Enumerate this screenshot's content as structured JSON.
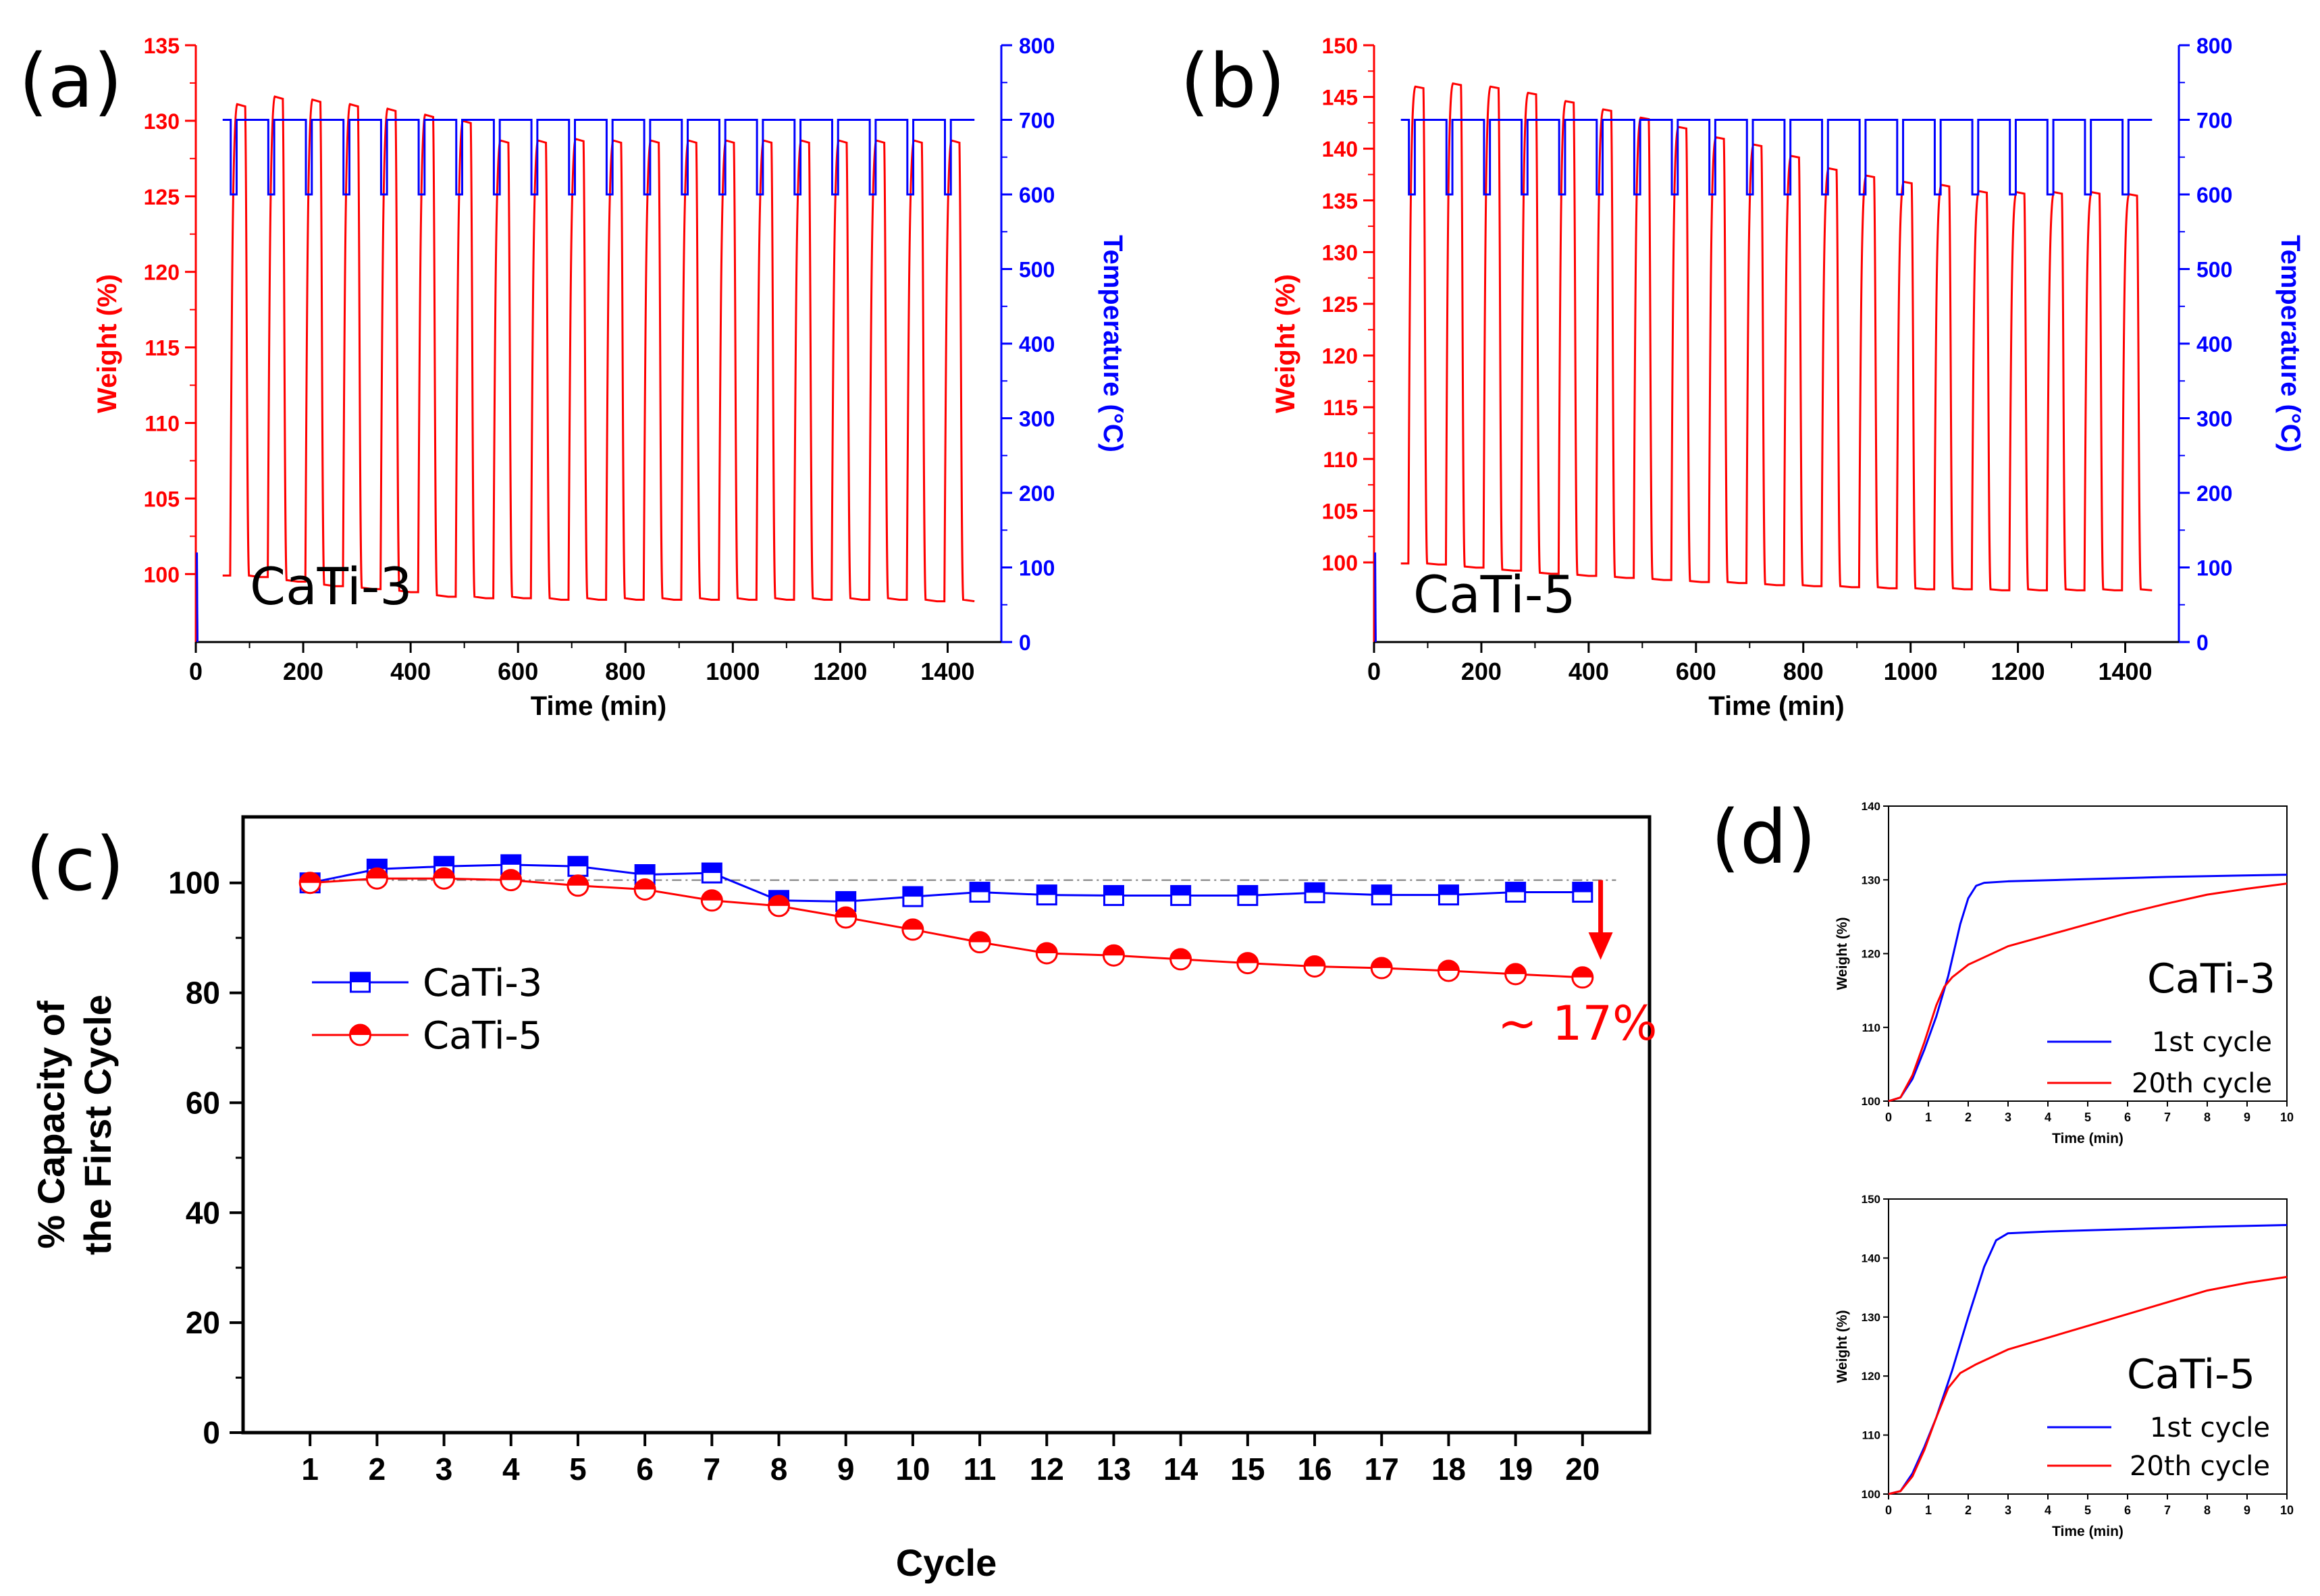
{
  "panels": {
    "a": {
      "label": "(a)",
      "sample": "CaTi-3"
    },
    "b": {
      "label": "(b)",
      "sample": "CaTi-5"
    },
    "c": {
      "label": "(c)",
      "annotation": "~ 17%"
    },
    "d": {
      "label": "(d)"
    }
  },
  "colors": {
    "weight": "#ff0000",
    "temperature": "#0000ff",
    "cati3": "#0000ff",
    "cati5": "#ff0000"
  },
  "chart_data": [
    {
      "id": "a",
      "type": "line",
      "title": "CaTi-3",
      "xlabel": "Time (min)",
      "ylabel": "Weight  (%)",
      "y2label": "Temperature (°C)",
      "xlim": [
        0,
        1500
      ],
      "ylim": [
        95.5,
        135
      ],
      "y2lim": [
        0,
        800
      ],
      "xticks": [
        "0",
        "200",
        "400",
        "600",
        "800",
        "1000",
        "1200",
        "1400"
      ],
      "yticks": [
        "100",
        "105",
        "110",
        "115",
        "120",
        "125",
        "130",
        "135"
      ],
      "y2ticks": [
        "0",
        "100",
        "200",
        "300",
        "400",
        "500",
        "600",
        "700",
        "800"
      ],
      "cycles": 20,
      "time_start": 50,
      "period": 70,
      "baseline_weights": [
        99.9,
        99.8,
        99.5,
        99.2,
        99.0,
        98.8,
        98.5,
        98.4,
        98.4,
        98.3,
        98.3,
        98.3,
        98.3,
        98.3,
        98.3,
        98.3,
        98.3,
        98.3,
        98.3,
        98.2
      ],
      "peak_weights": [
        131.1,
        131.6,
        131.4,
        131.1,
        130.8,
        130.4,
        130.0,
        128.7,
        128.7,
        128.8,
        128.7,
        128.7,
        128.7,
        128.7,
        128.7,
        128.7,
        128.7,
        128.7,
        128.7,
        128.7
      ],
      "temperature_high": 700,
      "temperature_low": 600
    },
    {
      "id": "b",
      "type": "line",
      "title": "CaTi-5",
      "xlabel": "Time (min)",
      "ylabel": "Weight  (%)",
      "y2label": "Temperature (°C)",
      "xlim": [
        0,
        1500
      ],
      "ylim": [
        92.3,
        150
      ],
      "y2lim": [
        0,
        800
      ],
      "xticks": [
        "0",
        "200",
        "400",
        "600",
        "800",
        "1000",
        "1200",
        "1400"
      ],
      "yticks": [
        "100",
        "105",
        "110",
        "115",
        "120",
        "125",
        "130",
        "135",
        "140",
        "145",
        "150"
      ],
      "y2ticks": [
        "0",
        "100",
        "200",
        "300",
        "400",
        "500",
        "600",
        "700",
        "800"
      ],
      "cycles": 20,
      "time_start": 50,
      "period": 70,
      "baseline_weights": [
        99.9,
        99.8,
        99.5,
        99.2,
        98.9,
        98.7,
        98.5,
        98.3,
        98.1,
        98.0,
        97.8,
        97.7,
        97.6,
        97.5,
        97.4,
        97.4,
        97.3,
        97.3,
        97.3,
        97.3
      ],
      "peak_weights": [
        146.0,
        146.3,
        146.0,
        145.4,
        144.6,
        143.8,
        143.0,
        142.1,
        141.1,
        140.4,
        139.3,
        138.1,
        137.4,
        136.8,
        136.5,
        135.9,
        135.8,
        135.8,
        135.8,
        135.6
      ],
      "temperature_high": 700,
      "temperature_low": 600
    },
    {
      "id": "c",
      "type": "line",
      "xlabel": "Cycle",
      "ylabel": "% Capacity of the First Cycle",
      "ylabel_lines": [
        "% Capacity of",
        "the First Cycle"
      ],
      "xlim": [
        0,
        21
      ],
      "ylim": [
        0,
        112
      ],
      "categories": [
        "1",
        "2",
        "3",
        "4",
        "5",
        "6",
        "7",
        "8",
        "9",
        "10",
        "11",
        "12",
        "13",
        "14",
        "15",
        "16",
        "17",
        "18",
        "19",
        "20"
      ],
      "yticks": [
        "0",
        "20",
        "40",
        "60",
        "80",
        "100"
      ],
      "reference_line": 100.5,
      "series": [
        {
          "name": "CaTi-3",
          "values": [
            100,
            102.5,
            103,
            103.3,
            103,
            101.5,
            101.8,
            96.8,
            96.6,
            97.5,
            98.3,
            97.8,
            97.7,
            97.7,
            97.7,
            98.2,
            97.8,
            97.8,
            98.3,
            98.3
          ]
        },
        {
          "name": "CaTi-5",
          "values": [
            100,
            100.8,
            100.8,
            100.5,
            99.5,
            98.8,
            96.8,
            95.8,
            93.7,
            91.5,
            89.2,
            87.2,
            86.8,
            86.1,
            85.4,
            84.8,
            84.5,
            84.0,
            83.4,
            82.8
          ]
        }
      ],
      "annotation": "~ 17%"
    },
    {
      "id": "d1",
      "type": "line",
      "title": "CaTi-3",
      "xlabel": "Time (min)",
      "ylabel": "Weight  (%)",
      "xlim": [
        0,
        10
      ],
      "ylim": [
        100,
        140
      ],
      "xticks": [
        "0",
        "1",
        "2",
        "3",
        "4",
        "5",
        "6",
        "7",
        "8",
        "9",
        "10"
      ],
      "yticks": [
        "100",
        "110",
        "120",
        "130",
        "140"
      ],
      "series": [
        {
          "name": "1st cycle",
          "x": [
            0,
            0.3,
            0.6,
            0.9,
            1.2,
            1.5,
            1.8,
            2.0,
            2.2,
            2.4,
            3,
            5,
            7,
            10
          ],
          "y": [
            100,
            100.5,
            103,
            107,
            111.5,
            117,
            124,
            127.5,
            129.2,
            129.6,
            129.8,
            130.1,
            130.4,
            130.7
          ]
        },
        {
          "name": "20th cycle",
          "x": [
            0,
            0.3,
            0.6,
            0.9,
            1.2,
            1.4,
            1.6,
            2,
            3,
            4,
            5,
            6,
            7,
            8,
            9,
            10
          ],
          "y": [
            100,
            100.5,
            103.5,
            108,
            113,
            115.5,
            116.8,
            118.5,
            121,
            122.5,
            124,
            125.5,
            126.8,
            128,
            128.8,
            129.5
          ]
        }
      ]
    },
    {
      "id": "d2",
      "type": "line",
      "title": "CaTi-5",
      "xlabel": "Time (min)",
      "ylabel": "Weight  (%)",
      "xlim": [
        0,
        10
      ],
      "ylim": [
        100,
        150
      ],
      "xticks": [
        "0",
        "1",
        "2",
        "3",
        "4",
        "5",
        "6",
        "7",
        "8",
        "9",
        "10"
      ],
      "yticks": [
        "100",
        "110",
        "120",
        "130",
        "140",
        "150"
      ],
      "series": [
        {
          "name": "1st cycle",
          "x": [
            0,
            0.3,
            0.6,
            0.9,
            1.2,
            1.6,
            2.0,
            2.4,
            2.7,
            3.0,
            4,
            6,
            8,
            10
          ],
          "y": [
            100,
            100.5,
            103.5,
            108,
            113,
            121,
            130,
            138.5,
            143,
            144.2,
            144.5,
            144.9,
            145.3,
            145.6
          ]
        },
        {
          "name": "20th cycle",
          "x": [
            0,
            0.3,
            0.6,
            0.9,
            1.2,
            1.5,
            1.8,
            2.2,
            3,
            4,
            5,
            6,
            7,
            8,
            9,
            10
          ],
          "y": [
            100,
            100.5,
            103,
            107.5,
            113,
            118,
            120.5,
            122,
            124.5,
            126.5,
            128.5,
            130.5,
            132.5,
            134.5,
            135.8,
            136.8
          ]
        }
      ]
    }
  ]
}
